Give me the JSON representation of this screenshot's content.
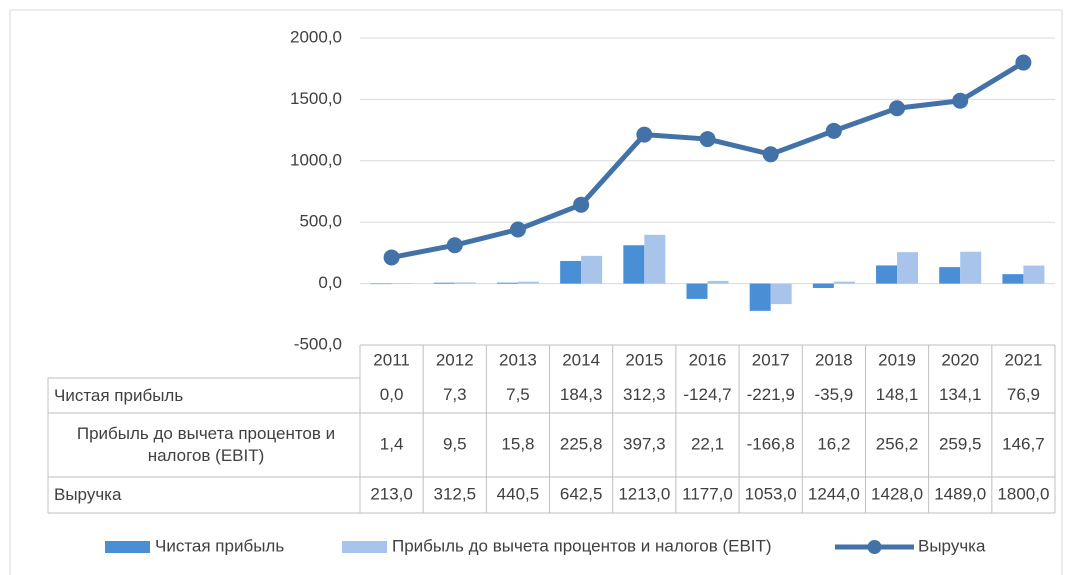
{
  "chart_data": {
    "type": "combo",
    "categories": [
      "2011",
      "2012",
      "2013",
      "2014",
      "2015",
      "2016",
      "2017",
      "2018",
      "2019",
      "2020",
      "2021"
    ],
    "series": [
      {
        "name": "Чистая прибыль",
        "type": "bar",
        "color": "#4a8fd6",
        "values": [
          0.0,
          7.3,
          7.5,
          184.3,
          312.3,
          -124.7,
          -221.9,
          -35.9,
          148.1,
          134.1,
          76.9
        ],
        "value_labels": [
          "0,0",
          "7,3",
          "7,5",
          "184,3",
          "312,3",
          "-124,7",
          "-221,9",
          "-35,9",
          "148,1",
          "134,1",
          "76,9"
        ]
      },
      {
        "name": "Прибыль до вычета процентов и налогов (EBIT)",
        "type": "bar",
        "color": "#a9c4eb",
        "values": [
          1.4,
          9.5,
          15.8,
          225.8,
          397.3,
          22.1,
          -166.8,
          16.2,
          256.2,
          259.5,
          146.7
        ],
        "value_labels": [
          "1,4",
          "9,5",
          "15,8",
          "225,8",
          "397,3",
          "22,1",
          "-166,8",
          "16,2",
          "256,2",
          "259,5",
          "146,7"
        ]
      },
      {
        "name": "Выручка",
        "type": "line",
        "color": "#4372a8",
        "values": [
          213.0,
          312.5,
          440.5,
          642.5,
          1213.0,
          1177.0,
          1053.0,
          1244.0,
          1428.0,
          1489.0,
          1800.0
        ],
        "value_labels": [
          "213,0",
          "312,5",
          "440,5",
          "642,5",
          "1213,0",
          "1177,0",
          "1053,0",
          "1244,0",
          "1428,0",
          "1489,0",
          "1800,0"
        ]
      }
    ],
    "ylim": [
      -500,
      2000
    ],
    "yticks": [
      {
        "value": -500,
        "label": "-500,0"
      },
      {
        "value": 0,
        "label": "0,0"
      },
      {
        "value": 500,
        "label": "500,0"
      },
      {
        "value": 1000,
        "label": "1000,0"
      },
      {
        "value": 1500,
        "label": "1500,0"
      },
      {
        "value": 2000,
        "label": "2000,0"
      }
    ],
    "grid": true,
    "legend": "bottom",
    "data_table": true
  }
}
